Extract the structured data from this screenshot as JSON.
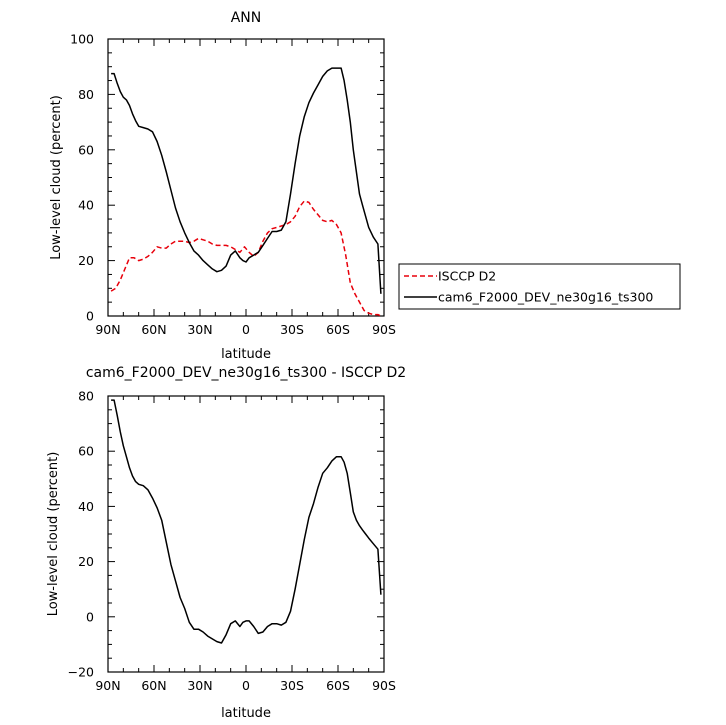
{
  "chart_data": [
    {
      "type": "line",
      "title": "ANN",
      "xlabel": "latitude",
      "ylabel": "Low-level cloud (percent)",
      "xlim": [
        90,
        -90
      ],
      "ylim": [
        0,
        100
      ],
      "x_ticks": [
        90,
        60,
        30,
        0,
        -30,
        -60,
        -90
      ],
      "x_tick_labels": [
        "90N",
        "60N",
        "30N",
        "0",
        "30S",
        "60S",
        "90S"
      ],
      "y_ticks": [
        0,
        20,
        40,
        60,
        80,
        100
      ],
      "y_tick_labels": [
        "0",
        "20",
        "40",
        "60",
        "80",
        "100"
      ],
      "legend_position": "right of plot",
      "series": [
        {
          "name": "ISCCP D2",
          "color": "#e8000b",
          "dash": "dashed",
          "x": [
            88,
            85,
            82,
            79,
            76,
            73,
            70,
            67,
            64,
            61,
            58,
            55,
            52,
            49,
            46,
            43,
            40,
            37,
            34,
            31,
            28,
            25,
            22,
            19,
            16,
            13,
            10,
            7,
            4,
            1,
            -2,
            -5,
            -8,
            -11,
            -14,
            -17,
            -20,
            -23,
            -26,
            -29,
            -32,
            -35,
            -38,
            -41,
            -44,
            -47,
            -50,
            -53,
            -56,
            -59,
            -62,
            -65,
            -68,
            -71,
            -74,
            -77,
            -80,
            -83,
            -86,
            -88
          ],
          "y": [
            9,
            10,
            13,
            17,
            21,
            21,
            20,
            20.5,
            21.5,
            23,
            25,
            24.5,
            24.5,
            26,
            27,
            27,
            27,
            26.5,
            27,
            28,
            27.5,
            27,
            26,
            25.5,
            25.5,
            25.5,
            25,
            24,
            23,
            25,
            23,
            21.5,
            23,
            27,
            30,
            31.5,
            32,
            32.5,
            33,
            34,
            36,
            39.5,
            41.5,
            41,
            38.5,
            36.5,
            34.5,
            34,
            34.5,
            33,
            30,
            22,
            12,
            8,
            5,
            2,
            1,
            0.5,
            0.5,
            0
          ]
        },
        {
          "name": "cam6_F2000_DEV_ne30g16_ts300",
          "color": "#000000",
          "dash": "solid",
          "x": [
            88,
            86,
            84,
            82,
            80,
            78,
            76,
            74,
            72,
            70,
            67,
            64,
            61,
            58,
            55,
            52,
            49,
            46,
            43,
            40,
            37,
            34,
            31,
            28,
            25,
            22,
            19,
            16,
            13,
            10,
            7,
            4,
            2,
            0,
            -2,
            -5,
            -8,
            -11,
            -14,
            -17,
            -20,
            -23,
            -26,
            -29,
            -32,
            -35,
            -38,
            -41,
            -44,
            -47,
            -50,
            -53,
            -56,
            -59,
            -62,
            -64,
            -66,
            -68,
            -70,
            -72,
            -74,
            -76,
            -78,
            -80,
            -83,
            -86,
            -88
          ],
          "y": [
            87.5,
            87.5,
            84,
            81,
            79,
            78,
            76,
            73,
            70.5,
            68.5,
            68,
            67.5,
            66.5,
            63,
            58,
            52,
            45.5,
            39,
            34,
            30,
            26.5,
            23.5,
            22,
            20,
            18.5,
            17,
            16,
            16.5,
            18,
            22,
            23.5,
            21,
            20,
            19.5,
            21,
            22,
            23,
            25.5,
            28,
            30.5,
            30.5,
            31,
            34,
            44,
            55,
            65,
            72,
            77,
            80.5,
            83.5,
            86.5,
            88.5,
            89.5,
            89.5,
            89.5,
            85,
            78,
            70,
            60,
            52,
            44,
            40,
            36,
            32,
            28.5,
            26,
            8
          ]
        }
      ]
    },
    {
      "type": "line",
      "title": "cam6_F2000_DEV_ne30g16_ts300 - ISCCP D2",
      "xlabel": "latitude",
      "ylabel": "Low-level cloud (percent)",
      "xlim": [
        90,
        -90
      ],
      "ylim": [
        -20,
        80
      ],
      "x_ticks": [
        90,
        60,
        30,
        0,
        -30,
        -60,
        -90
      ],
      "x_tick_labels": [
        "90N",
        "60N",
        "30N",
        "0",
        "30S",
        "60S",
        "90S"
      ],
      "y_ticks": [
        -20,
        0,
        20,
        40,
        60,
        80
      ],
      "y_tick_labels": [
        "−20",
        "0",
        "20",
        "40",
        "60",
        "80"
      ],
      "series": [
        {
          "color": "#000000",
          "dash": "solid",
          "x": [
            88,
            86,
            84,
            82,
            80,
            78,
            76,
            74,
            72,
            70,
            67,
            64,
            61,
            58,
            55,
            52,
            49,
            46,
            43,
            40,
            37,
            34,
            31,
            28,
            25,
            22,
            19,
            16,
            13,
            10,
            7,
            4,
            2,
            0,
            -2,
            -5,
            -8,
            -11,
            -14,
            -17,
            -20,
            -23,
            -26,
            -29,
            -32,
            -35,
            -38,
            -41,
            -44,
            -47,
            -50,
            -53,
            -56,
            -59,
            -62,
            -64,
            -66,
            -68,
            -70,
            -72,
            -74,
            -76,
            -78,
            -80,
            -83,
            -86,
            -88
          ],
          "y": [
            78.5,
            78.5,
            73,
            67,
            62,
            58,
            54,
            51,
            49,
            48,
            47.5,
            46,
            43,
            39.5,
            35,
            27,
            19,
            13,
            7,
            3,
            -2,
            -4.5,
            -4.5,
            -5.5,
            -7,
            -8,
            -9,
            -9.5,
            -6.5,
            -2.5,
            -1.5,
            -3.5,
            -2,
            -1.5,
            -1.5,
            -3.5,
            -6,
            -5.5,
            -3.5,
            -2.5,
            -2.5,
            -3,
            -2,
            2,
            10,
            19,
            28,
            36,
            41,
            47,
            52,
            54,
            56.5,
            58,
            58,
            56,
            52,
            45,
            38,
            35,
            33,
            31.5,
            30,
            28.5,
            26.5,
            24.5,
            8
          ]
        }
      ]
    }
  ]
}
